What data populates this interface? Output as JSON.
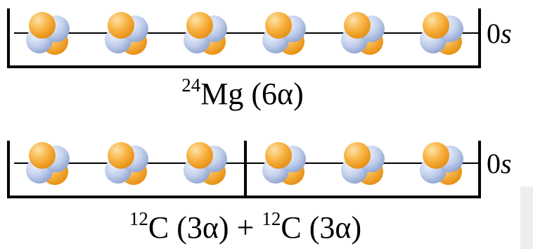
{
  "rows": [
    {
      "time": {
        "number": "0",
        "unit": "s"
      },
      "label": [
        {
          "sup": "24",
          "text": "Mg (6α)"
        }
      ]
    },
    {
      "time": {
        "number": "0",
        "unit": "s"
      },
      "label": [
        {
          "sup": "12",
          "text": "C (3α) + "
        },
        {
          "sup": "12",
          "text": "C (3α)"
        }
      ]
    }
  ]
}
